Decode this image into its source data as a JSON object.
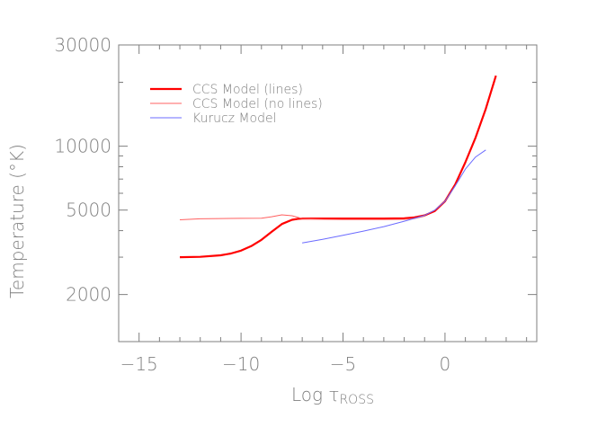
{
  "chart_data": {
    "type": "line",
    "title": "",
    "xlabel": "Log τ",
    "xlabel_subscript": "ROSS",
    "ylabel": "Temperature (°K)",
    "xlim": [
      -16,
      4.5
    ],
    "ylim": [
      1200,
      30000
    ],
    "y_scale": "log",
    "x_ticks": [
      -15,
      -10,
      -5,
      0
    ],
    "x_tick_labels": [
      "−15",
      "−10",
      "−5",
      "0"
    ],
    "y_ticks": [
      2000,
      5000,
      10000,
      30000
    ],
    "y_tick_labels": [
      "2000",
      "5000",
      "10000",
      "30000"
    ],
    "grid": false,
    "legend_position": "top-left",
    "series": [
      {
        "name": "CCS Model (lines)",
        "color": "#ff0000",
        "x": [
          -13,
          -12,
          -11,
          -10.5,
          -10,
          -9.5,
          -9,
          -8.5,
          -8,
          -7.5,
          -7.2,
          -7,
          -6,
          -5,
          -4,
          -3,
          -2,
          -1.5,
          -1,
          -0.5,
          0,
          0.5,
          1,
          1.5,
          2,
          2.5
        ],
        "y": [
          3000,
          3010,
          3060,
          3120,
          3220,
          3380,
          3620,
          3950,
          4300,
          4500,
          4550,
          4560,
          4560,
          4560,
          4560,
          4560,
          4570,
          4620,
          4720,
          4950,
          5500,
          6600,
          8400,
          11000,
          15000,
          21500
        ]
      },
      {
        "name": "CCS Model (no lines)",
        "color": "#ff6060",
        "x": [
          -13,
          -12,
          -11,
          -10,
          -9,
          -8.5,
          -8,
          -7.5,
          -7,
          -6,
          -5,
          -4,
          -3,
          -2,
          -1.5,
          -1
        ],
        "y": [
          4500,
          4550,
          4560,
          4570,
          4580,
          4650,
          4750,
          4700,
          4560,
          4520,
          4510,
          4510,
          4510,
          4520,
          4560,
          4680
        ]
      },
      {
        "name": "Kurucz Model",
        "color": "#6b6bff",
        "x": [
          -7,
          -6,
          -5,
          -4,
          -3,
          -2,
          -1,
          -0.5,
          0,
          0.5,
          1,
          1.5,
          2
        ],
        "y": [
          3500,
          3640,
          3800,
          3980,
          4180,
          4430,
          4720,
          5000,
          5500,
          6500,
          7800,
          8900,
          9600
        ]
      }
    ]
  }
}
